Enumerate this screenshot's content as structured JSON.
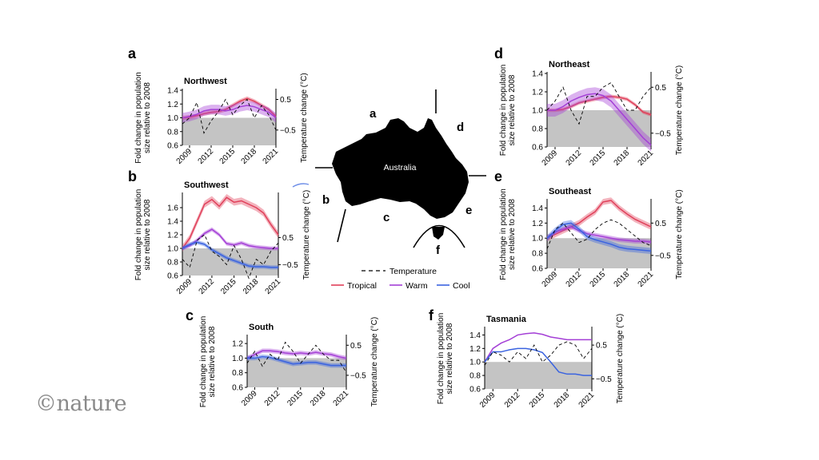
{
  "logo": "©nature",
  "map": {
    "label": "Australia",
    "letters": [
      "a",
      "b",
      "c",
      "d",
      "e",
      "f"
    ]
  },
  "legend": {
    "temperature": "Temperature",
    "series": [
      {
        "name": "Tropical",
        "color": "#e0405a"
      },
      {
        "name": "Warm",
        "color": "#a43fd6"
      },
      {
        "name": "Cool",
        "color": "#3a63e0"
      }
    ]
  },
  "chart_data": [
    {
      "panel": "a",
      "type": "line",
      "title": "Northwest",
      "ylabel": [
        "Fold change in population",
        "size relative to 2008"
      ],
      "ylabel2": "Temperature change (°C)",
      "xticks": [
        2009,
        2012,
        2015,
        2018,
        2021
      ],
      "xlim": [
        2008,
        2021
      ],
      "ylim": [
        0.6,
        1.4
      ],
      "yticks": [
        0.6,
        0.8,
        1.0,
        1.2,
        1.4
      ],
      "y2lim": [
        -1.0,
        0.8
      ],
      "y2ticks": [
        -0.5,
        0.5
      ],
      "x": [
        2008,
        2009,
        2010,
        2011,
        2012,
        2013,
        2014,
        2015,
        2016,
        2017,
        2018,
        2019,
        2020,
        2021
      ],
      "series": [
        {
          "name": "Tropical",
          "values": [
            1.0,
            1.01,
            1.03,
            1.06,
            1.08,
            1.09,
            1.12,
            1.18,
            1.24,
            1.28,
            1.24,
            1.18,
            1.12,
            1.02
          ],
          "band": 0.03
        },
        {
          "name": "Warm",
          "values": [
            1.0,
            1.02,
            1.05,
            1.1,
            1.12,
            1.12,
            1.1,
            1.12,
            1.16,
            1.18,
            1.16,
            1.12,
            1.08,
            1.0
          ],
          "band": 0.07
        }
      ],
      "temperature": [
        -0.3,
        -0.1,
        0.4,
        -0.6,
        -0.2,
        0.1,
        0.5,
        0.0,
        0.3,
        0.5,
        -0.1,
        0.3,
        0.0,
        -0.5
      ]
    },
    {
      "panel": "b",
      "type": "line",
      "title": "Southwest",
      "ylabel": [
        "Fold change in population",
        "size relative to 2008"
      ],
      "ylabel2": "Temperature change (°C)",
      "xticks": [
        2009,
        2012,
        2015,
        2018,
        2021
      ],
      "xlim": [
        2008,
        2021
      ],
      "ylim": [
        0.6,
        1.8
      ],
      "yticks": [
        0.6,
        0.8,
        1.0,
        1.2,
        1.4,
        1.6
      ],
      "y2lim": [
        -0.9,
        2.1
      ],
      "y2ticks": [
        -0.5,
        0.5
      ],
      "x": [
        2008,
        2009,
        2010,
        2011,
        2012,
        2013,
        2014,
        2015,
        2016,
        2017,
        2018,
        2019,
        2020,
        2021
      ],
      "series": [
        {
          "name": "Tropical",
          "values": [
            1.0,
            1.15,
            1.4,
            1.65,
            1.72,
            1.62,
            1.75,
            1.68,
            1.7,
            1.65,
            1.6,
            1.52,
            1.35,
            1.2
          ],
          "band": 0.05
        },
        {
          "name": "Warm",
          "values": [
            1.0,
            1.04,
            1.12,
            1.22,
            1.28,
            1.2,
            1.07,
            1.05,
            1.08,
            1.04,
            1.02,
            1.01,
            1.0,
            1.0
          ],
          "band": 0.03
        },
        {
          "name": "Cool",
          "values": [
            1.0,
            1.06,
            1.09,
            1.06,
            0.98,
            0.92,
            0.86,
            0.82,
            0.78,
            0.74,
            0.73,
            0.73,
            0.72,
            0.72
          ],
          "band": 0.03
        }
      ],
      "temperature": [
        -0.3,
        -0.6,
        0.4,
        0.6,
        0.0,
        -0.2,
        -0.5,
        0.2,
        -0.3,
        -1.0,
        -0.3,
        -0.5,
        0.0,
        0.3
      ]
    },
    {
      "panel": "c",
      "type": "line",
      "title": "South",
      "ylabel": [
        "Fold change in population",
        "size relative to 2008"
      ],
      "ylabel2": "Temperature change (°C)",
      "xticks": [
        2009,
        2012,
        2015,
        2018,
        2021
      ],
      "xlim": [
        2008,
        2021
      ],
      "ylim": [
        0.6,
        1.3
      ],
      "yticks": [
        0.6,
        0.8,
        1.0,
        1.2
      ],
      "y2lim": [
        -0.9,
        0.8
      ],
      "y2ticks": [
        -0.5,
        0.5
      ],
      "x": [
        2008,
        2009,
        2010,
        2011,
        2012,
        2013,
        2014,
        2015,
        2016,
        2017,
        2018,
        2019,
        2020,
        2021
      ],
      "series": [
        {
          "name": "Warm",
          "values": [
            1.0,
            1.05,
            1.1,
            1.1,
            1.09,
            1.07,
            1.06,
            1.07,
            1.06,
            1.08,
            1.06,
            1.05,
            1.02,
            1.0
          ],
          "band": 0.03
        },
        {
          "name": "Cool",
          "values": [
            1.0,
            1.0,
            1.02,
            1.01,
            0.98,
            0.95,
            0.92,
            0.93,
            0.94,
            0.94,
            0.92,
            0.9,
            0.9,
            0.9
          ],
          "band": 0.03
        }
      ],
      "temperature": [
        -0.1,
        0.3,
        -0.2,
        0.2,
        0.0,
        0.6,
        0.3,
        -0.1,
        0.2,
        0.5,
        0.2,
        0.0,
        0.0,
        -0.4
      ]
    },
    {
      "panel": "d",
      "type": "line",
      "title": "Northeast",
      "ylabel": [
        "Fold change in population",
        "size relative to 2008"
      ],
      "ylabel2": "Temperature change (°C)",
      "xticks": [
        2009,
        2012,
        2015,
        2018,
        2021
      ],
      "xlim": [
        2008,
        2021
      ],
      "ylim": [
        0.6,
        1.4
      ],
      "yticks": [
        0.6,
        0.8,
        1.0,
        1.2,
        1.4
      ],
      "y2lim": [
        -0.8,
        0.8
      ],
      "y2ticks": [
        -0.5,
        0.5
      ],
      "x": [
        2008,
        2009,
        2010,
        2011,
        2012,
        2013,
        2014,
        2015,
        2016,
        2017,
        2018,
        2019,
        2020,
        2021
      ],
      "series": [
        {
          "name": "Tropical",
          "values": [
            1.0,
            1.0,
            1.01,
            1.04,
            1.08,
            1.1,
            1.12,
            1.14,
            1.15,
            1.14,
            1.12,
            1.06,
            0.98,
            0.95
          ],
          "band": 0.02
        },
        {
          "name": "Warm",
          "values": [
            1.0,
            1.0,
            1.04,
            1.1,
            1.14,
            1.17,
            1.18,
            1.16,
            1.1,
            1.0,
            0.9,
            0.8,
            0.7,
            0.62
          ],
          "band": 0.07
        }
      ],
      "temperature": [
        0.0,
        0.2,
        0.5,
        0.0,
        -0.3,
        0.3,
        0.3,
        0.5,
        0.6,
        0.3,
        0.0,
        0.0,
        0.3,
        0.5
      ]
    },
    {
      "panel": "e",
      "type": "line",
      "title": "Southeast",
      "ylabel": [
        "Fold change in population",
        "size relative to 2008"
      ],
      "ylabel2": "Temperature change (°C)",
      "xticks": [
        2009,
        2012,
        2015,
        2018,
        2021
      ],
      "xlim": [
        2008,
        2021
      ],
      "ylim": [
        0.6,
        1.5
      ],
      "yticks": [
        0.6,
        0.8,
        1.0,
        1.2,
        1.4
      ],
      "y2lim": [
        -0.9,
        1.2
      ],
      "y2ticks": [
        -0.5,
        0.5
      ],
      "x": [
        2008,
        2009,
        2010,
        2011,
        2012,
        2013,
        2014,
        2015,
        2016,
        2017,
        2018,
        2019,
        2020,
        2021
      ],
      "series": [
        {
          "name": "Tropical",
          "values": [
            1.0,
            1.05,
            1.1,
            1.15,
            1.2,
            1.28,
            1.35,
            1.48,
            1.5,
            1.4,
            1.32,
            1.25,
            1.2,
            1.15
          ],
          "band": 0.04
        },
        {
          "name": "Warm",
          "values": [
            1.0,
            1.08,
            1.12,
            1.15,
            1.1,
            1.06,
            1.04,
            1.02,
            1.0,
            0.98,
            0.97,
            0.96,
            0.96,
            0.95
          ],
          "band": 0.03
        },
        {
          "name": "Cool",
          "values": [
            1.0,
            1.1,
            1.18,
            1.2,
            1.12,
            1.02,
            0.98,
            0.95,
            0.92,
            0.88,
            0.86,
            0.85,
            0.84,
            0.83
          ],
          "band": 0.04
        }
      ],
      "temperature": [
        -0.3,
        0.3,
        0.5,
        0.2,
        -0.1,
        0.0,
        0.3,
        0.5,
        0.6,
        0.5,
        0.3,
        0.1,
        -0.1,
        -0.2
      ]
    },
    {
      "panel": "f",
      "type": "line",
      "title": "Tasmania",
      "ylabel": [
        "Fold change in population",
        "size relative to 2008"
      ],
      "ylabel2": "Temperature change (°C)",
      "xticks": [
        2009,
        2012,
        2015,
        2018,
        2021
      ],
      "xlim": [
        2008,
        2021
      ],
      "ylim": [
        0.6,
        1.5
      ],
      "yticks": [
        0.6,
        0.8,
        1.0,
        1.2,
        1.4
      ],
      "y2lim": [
        -0.8,
        1.0
      ],
      "y2ticks": [
        -0.5,
        0.5
      ],
      "x": [
        2008,
        2009,
        2010,
        2011,
        2012,
        2013,
        2014,
        2015,
        2016,
        2017,
        2018,
        2019,
        2020,
        2021
      ],
      "series": [
        {
          "name": "Warm",
          "values": [
            1.0,
            1.2,
            1.28,
            1.33,
            1.4,
            1.42,
            1.43,
            1.41,
            1.37,
            1.35,
            1.33,
            1.33,
            1.33,
            1.33
          ],
          "band": 0.0
        },
        {
          "name": "Cool",
          "values": [
            1.0,
            1.15,
            1.15,
            1.18,
            1.2,
            1.2,
            1.18,
            1.14,
            1.0,
            0.85,
            0.82,
            0.82,
            0.8,
            0.8
          ],
          "band": 0.0
        }
      ],
      "temperature": [
        -0.1,
        0.3,
        0.2,
        0.0,
        0.3,
        0.1,
        0.5,
        0.0,
        0.2,
        0.5,
        0.6,
        0.5,
        0.1,
        0.4
      ]
    }
  ]
}
